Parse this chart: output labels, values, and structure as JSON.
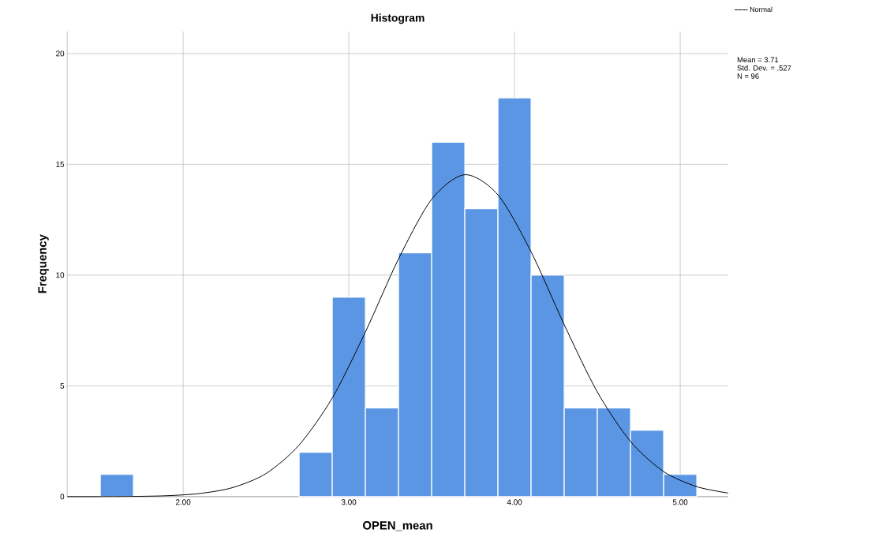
{
  "chart_data": {
    "type": "histogram",
    "title": "Histogram",
    "xlabel": "OPEN_mean",
    "ylabel": "Frequency",
    "bins": [
      1.5,
      1.7,
      1.9,
      2.1,
      2.3,
      2.5,
      2.7,
      2.9,
      3.1,
      3.3,
      3.5,
      3.7,
      3.9,
      4.1,
      4.3,
      4.5,
      4.7,
      4.9,
      5.1
    ],
    "values": [
      1,
      0,
      0,
      0,
      0,
      0,
      2,
      9,
      4,
      11,
      16,
      13,
      18,
      10,
      4,
      4,
      3,
      1
    ],
    "color": "#5a96e3",
    "series": [
      {
        "name": "Normal",
        "type": "line",
        "color": "#000000",
        "x": [
          1.3,
          1.5,
          1.7,
          1.9,
          2.1,
          2.3,
          2.5,
          2.7,
          2.9,
          3.1,
          3.3,
          3.5,
          3.7,
          3.9,
          4.1,
          4.3,
          4.5,
          4.7,
          4.9,
          5.1,
          5.29
        ],
        "values": [
          0.0,
          0.0,
          0.01,
          0.04,
          0.14,
          0.41,
          1.04,
          2.33,
          4.45,
          7.43,
          10.73,
          13.42,
          14.53,
          13.62,
          11.05,
          7.76,
          4.72,
          2.49,
          1.13,
          0.45,
          0.16
        ]
      }
    ],
    "xlim": [
      1.3,
      5.29
    ],
    "ylim": [
      0,
      21
    ],
    "xticks": [
      {
        "value": 2,
        "label": "2.00"
      },
      {
        "value": 3,
        "label": "3.00"
      },
      {
        "value": 4,
        "label": "4.00"
      },
      {
        "value": 5,
        "label": "5.00"
      }
    ],
    "yticks": [
      0,
      5,
      10,
      15,
      20
    ],
    "grid": true,
    "legend": "top right",
    "annotations": [
      "Mean = 3.71",
      "Std. Dev. = .527",
      "N = 96"
    ]
  }
}
